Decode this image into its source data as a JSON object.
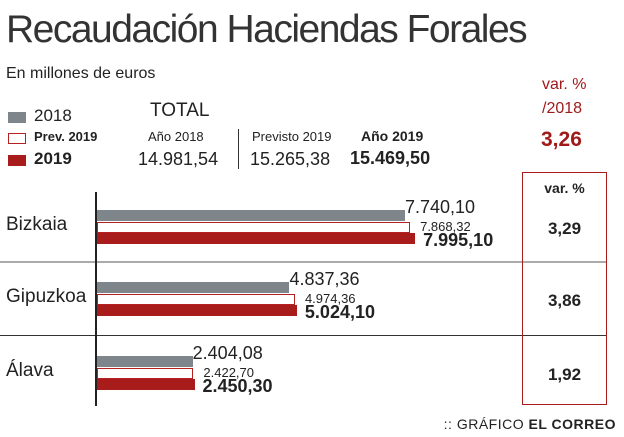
{
  "title": "Recaudación Haciendas Forales",
  "subtitle": "En millones de euros",
  "colors": {
    "s2018": "#7f868b",
    "prev": "#ffffff",
    "s2019": "#a81c1c",
    "accent": "#a01a1a"
  },
  "legend": [
    "2018",
    "Prev. 2019",
    "2019"
  ],
  "total": {
    "heading": "TOTAL",
    "cols": [
      {
        "label": "Año 2018",
        "value": "14.981,54"
      },
      {
        "label": "Previsto 2019",
        "value": "15.265,38"
      },
      {
        "label": "Año 2019",
        "value": "15.469,50"
      }
    ]
  },
  "total_var": {
    "label1": "var. %",
    "label2": "/2018",
    "value": "3,26"
  },
  "var_header": "var. %",
  "credit_prefix": "::",
  "credit_light": "GRÁFICO",
  "credit_bold": "EL CORREO",
  "chart_data": {
    "type": "bar",
    "orientation": "horizontal",
    "title": "Recaudación Haciendas Forales",
    "ylabel": "En millones de euros",
    "categories": [
      "Bizkaia",
      "Gipuzkoa",
      "Álava"
    ],
    "series": [
      {
        "name": "2018",
        "values": [
          7740.1,
          4837.36,
          2404.08
        ],
        "labels": [
          "7.740,10",
          "4.837,36",
          "2.404,08"
        ]
      },
      {
        "name": "Prev. 2019",
        "values": [
          7868.32,
          4974.36,
          2422.7
        ],
        "labels": [
          "7.868,32",
          "4.974,36",
          "2.422,70"
        ]
      },
      {
        "name": "2019",
        "values": [
          7995.1,
          5024.1,
          2450.3
        ],
        "labels": [
          "7.995,10",
          "5.024,10",
          "2.450,30"
        ]
      }
    ],
    "var_pct": [
      "3,29",
      "3,86",
      "1,92"
    ],
    "xlim": [
      0,
      8000
    ]
  }
}
